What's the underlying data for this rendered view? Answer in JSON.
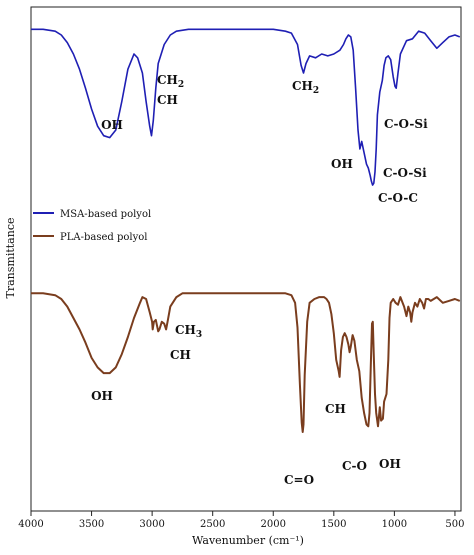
{
  "chart_data": {
    "type": "line",
    "xlabel": "Wavenumber (cm⁻¹)",
    "ylabel": "Transmittance",
    "xlim": [
      4000,
      450
    ],
    "x_reversed": true,
    "x_ticks": [
      4000,
      3500,
      3000,
      2500,
      2000,
      1500,
      1000,
      500
    ],
    "grid": false,
    "legend_position": "middle-left",
    "series": [
      {
        "name": "MSA-based polyol",
        "color": "#1f1fb4",
        "points": [
          [
            4000,
            0.93
          ],
          [
            3900,
            0.93
          ],
          [
            3800,
            0.92
          ],
          [
            3750,
            0.9
          ],
          [
            3700,
            0.86
          ],
          [
            3650,
            0.8
          ],
          [
            3600,
            0.72
          ],
          [
            3550,
            0.62
          ],
          [
            3500,
            0.51
          ],
          [
            3450,
            0.42
          ],
          [
            3400,
            0.37
          ],
          [
            3350,
            0.36
          ],
          [
            3300,
            0.4
          ],
          [
            3250,
            0.55
          ],
          [
            3200,
            0.72
          ],
          [
            3150,
            0.8
          ],
          [
            3120,
            0.78
          ],
          [
            3080,
            0.7
          ],
          [
            3050,
            0.55
          ],
          [
            3020,
            0.42
          ],
          [
            3005,
            0.37
          ],
          [
            2990,
            0.45
          ],
          [
            2970,
            0.62
          ],
          [
            2950,
            0.75
          ],
          [
            2900,
            0.85
          ],
          [
            2850,
            0.9
          ],
          [
            2800,
            0.92
          ],
          [
            2700,
            0.93
          ],
          [
            2600,
            0.93
          ],
          [
            2500,
            0.93
          ],
          [
            2400,
            0.93
          ],
          [
            2300,
            0.93
          ],
          [
            2200,
            0.93
          ],
          [
            2100,
            0.93
          ],
          [
            2000,
            0.93
          ],
          [
            1900,
            0.92
          ],
          [
            1850,
            0.91
          ],
          [
            1800,
            0.85
          ],
          [
            1770,
            0.74
          ],
          [
            1750,
            0.7
          ],
          [
            1730,
            0.75
          ],
          [
            1700,
            0.79
          ],
          [
            1650,
            0.78
          ],
          [
            1600,
            0.8
          ],
          [
            1550,
            0.79
          ],
          [
            1500,
            0.8
          ],
          [
            1450,
            0.82
          ],
          [
            1420,
            0.85
          ],
          [
            1400,
            0.88
          ],
          [
            1380,
            0.9
          ],
          [
            1360,
            0.89
          ],
          [
            1340,
            0.82
          ],
          [
            1320,
            0.62
          ],
          [
            1300,
            0.4
          ],
          [
            1285,
            0.3
          ],
          [
            1270,
            0.34
          ],
          [
            1250,
            0.28
          ],
          [
            1230,
            0.22
          ],
          [
            1215,
            0.2
          ],
          [
            1200,
            0.16
          ],
          [
            1190,
            0.13
          ],
          [
            1180,
            0.11
          ],
          [
            1170,
            0.12
          ],
          [
            1160,
            0.18
          ],
          [
            1150,
            0.3
          ],
          [
            1140,
            0.48
          ],
          [
            1120,
            0.6
          ],
          [
            1100,
            0.66
          ],
          [
            1085,
            0.74
          ],
          [
            1070,
            0.78
          ],
          [
            1050,
            0.79
          ],
          [
            1030,
            0.77
          ],
          [
            1010,
            0.68
          ],
          [
            995,
            0.63
          ],
          [
            985,
            0.62
          ],
          [
            970,
            0.7
          ],
          [
            950,
            0.8
          ],
          [
            900,
            0.87
          ],
          [
            850,
            0.88
          ],
          [
            800,
            0.92
          ],
          [
            750,
            0.91
          ],
          [
            700,
            0.87
          ],
          [
            650,
            0.83
          ],
          [
            600,
            0.86
          ],
          [
            550,
            0.89
          ],
          [
            500,
            0.9
          ],
          [
            460,
            0.89
          ]
        ]
      },
      {
        "name": "PLA-based polyol",
        "color": "#7a3d1e",
        "points": [
          [
            4000,
            0.93
          ],
          [
            3900,
            0.93
          ],
          [
            3800,
            0.92
          ],
          [
            3750,
            0.9
          ],
          [
            3700,
            0.86
          ],
          [
            3650,
            0.8
          ],
          [
            3600,
            0.74
          ],
          [
            3550,
            0.67
          ],
          [
            3500,
            0.59
          ],
          [
            3450,
            0.54
          ],
          [
            3400,
            0.51
          ],
          [
            3350,
            0.51
          ],
          [
            3300,
            0.54
          ],
          [
            3250,
            0.61
          ],
          [
            3200,
            0.7
          ],
          [
            3150,
            0.8
          ],
          [
            3100,
            0.88
          ],
          [
            3080,
            0.91
          ],
          [
            3050,
            0.9
          ],
          [
            3020,
            0.83
          ],
          [
            3000,
            0.78
          ],
          [
            2995,
            0.74
          ],
          [
            2985,
            0.78
          ],
          [
            2970,
            0.79
          ],
          [
            2960,
            0.76
          ],
          [
            2950,
            0.73
          ],
          [
            2940,
            0.74
          ],
          [
            2920,
            0.78
          ],
          [
            2900,
            0.77
          ],
          [
            2885,
            0.74
          ],
          [
            2870,
            0.79
          ],
          [
            2850,
            0.86
          ],
          [
            2800,
            0.91
          ],
          [
            2750,
            0.93
          ],
          [
            2700,
            0.93
          ],
          [
            2600,
            0.93
          ],
          [
            2500,
            0.93
          ],
          [
            2400,
            0.93
          ],
          [
            2300,
            0.93
          ],
          [
            2200,
            0.93
          ],
          [
            2100,
            0.93
          ],
          [
            2000,
            0.93
          ],
          [
            1900,
            0.93
          ],
          [
            1850,
            0.92
          ],
          [
            1820,
            0.88
          ],
          [
            1800,
            0.75
          ],
          [
            1780,
            0.45
          ],
          [
            1765,
            0.25
          ],
          [
            1757,
            0.2
          ],
          [
            1750,
            0.24
          ],
          [
            1740,
            0.5
          ],
          [
            1720,
            0.78
          ],
          [
            1700,
            0.88
          ],
          [
            1660,
            0.9
          ],
          [
            1620,
            0.91
          ],
          [
            1580,
            0.91
          ],
          [
            1560,
            0.9
          ],
          [
            1540,
            0.88
          ],
          [
            1520,
            0.82
          ],
          [
            1500,
            0.72
          ],
          [
            1480,
            0.58
          ],
          [
            1460,
            0.52
          ],
          [
            1452,
            0.49
          ],
          [
            1440,
            0.63
          ],
          [
            1425,
            0.7
          ],
          [
            1410,
            0.72
          ],
          [
            1395,
            0.7
          ],
          [
            1380,
            0.66
          ],
          [
            1370,
            0.62
          ],
          [
            1360,
            0.65
          ],
          [
            1345,
            0.71
          ],
          [
            1330,
            0.68
          ],
          [
            1310,
            0.58
          ],
          [
            1290,
            0.52
          ],
          [
            1270,
            0.38
          ],
          [
            1250,
            0.3
          ],
          [
            1230,
            0.24
          ],
          [
            1215,
            0.23
          ],
          [
            1205,
            0.3
          ],
          [
            1195,
            0.55
          ],
          [
            1185,
            0.77
          ],
          [
            1178,
            0.78
          ],
          [
            1170,
            0.6
          ],
          [
            1160,
            0.4
          ],
          [
            1150,
            0.3
          ],
          [
            1135,
            0.23
          ],
          [
            1128,
            0.28
          ],
          [
            1120,
            0.33
          ],
          [
            1110,
            0.26
          ],
          [
            1095,
            0.27
          ],
          [
            1085,
            0.36
          ],
          [
            1075,
            0.38
          ],
          [
            1065,
            0.4
          ],
          [
            1050,
            0.58
          ],
          [
            1040,
            0.8
          ],
          [
            1030,
            0.88
          ],
          [
            1010,
            0.9
          ],
          [
            990,
            0.88
          ],
          [
            970,
            0.87
          ],
          [
            950,
            0.91
          ],
          [
            920,
            0.86
          ],
          [
            900,
            0.81
          ],
          [
            885,
            0.86
          ],
          [
            870,
            0.83
          ],
          [
            860,
            0.78
          ],
          [
            850,
            0.83
          ],
          [
            830,
            0.88
          ],
          [
            810,
            0.86
          ],
          [
            790,
            0.9
          ],
          [
            770,
            0.88
          ],
          [
            755,
            0.85
          ],
          [
            740,
            0.9
          ],
          [
            720,
            0.9
          ],
          [
            700,
            0.89
          ],
          [
            650,
            0.91
          ],
          [
            600,
            0.88
          ],
          [
            550,
            0.89
          ],
          [
            500,
            0.9
          ],
          [
            460,
            0.89
          ]
        ]
      }
    ],
    "annotations": {
      "msa": [
        {
          "text": "OH",
          "wn": 3350,
          "side": "below"
        },
        {
          "text": "CH2",
          "wn": 2990,
          "side": "upper"
        },
        {
          "text": "CH",
          "wn": 2990,
          "side": "lower"
        },
        {
          "text": "CH2",
          "wn": 1760,
          "side": "below"
        },
        {
          "text": "C-O-Si",
          "wn": 810,
          "side": "right-upper"
        },
        {
          "text": "OH",
          "wn": 1250,
          "side": "left"
        },
        {
          "text": "C-O-Si",
          "wn": 810,
          "side": "right-mid"
        },
        {
          "text": "C-O-C",
          "wn": 850,
          "side": "right-lower"
        }
      ],
      "pla": [
        {
          "text": "OH",
          "wn": 3350,
          "side": "below"
        },
        {
          "text": "CH3",
          "wn": 2810,
          "side": "upper"
        },
        {
          "text": "CH",
          "wn": 2830,
          "side": "lower"
        },
        {
          "text": "CH",
          "wn": 1430,
          "side": "below"
        },
        {
          "text": "C=O",
          "wn": 1757,
          "side": "below"
        },
        {
          "text": "C-O",
          "wn": 1220,
          "side": "below"
        },
        {
          "text": "OH",
          "wn": 1060,
          "side": "below"
        }
      ]
    }
  }
}
